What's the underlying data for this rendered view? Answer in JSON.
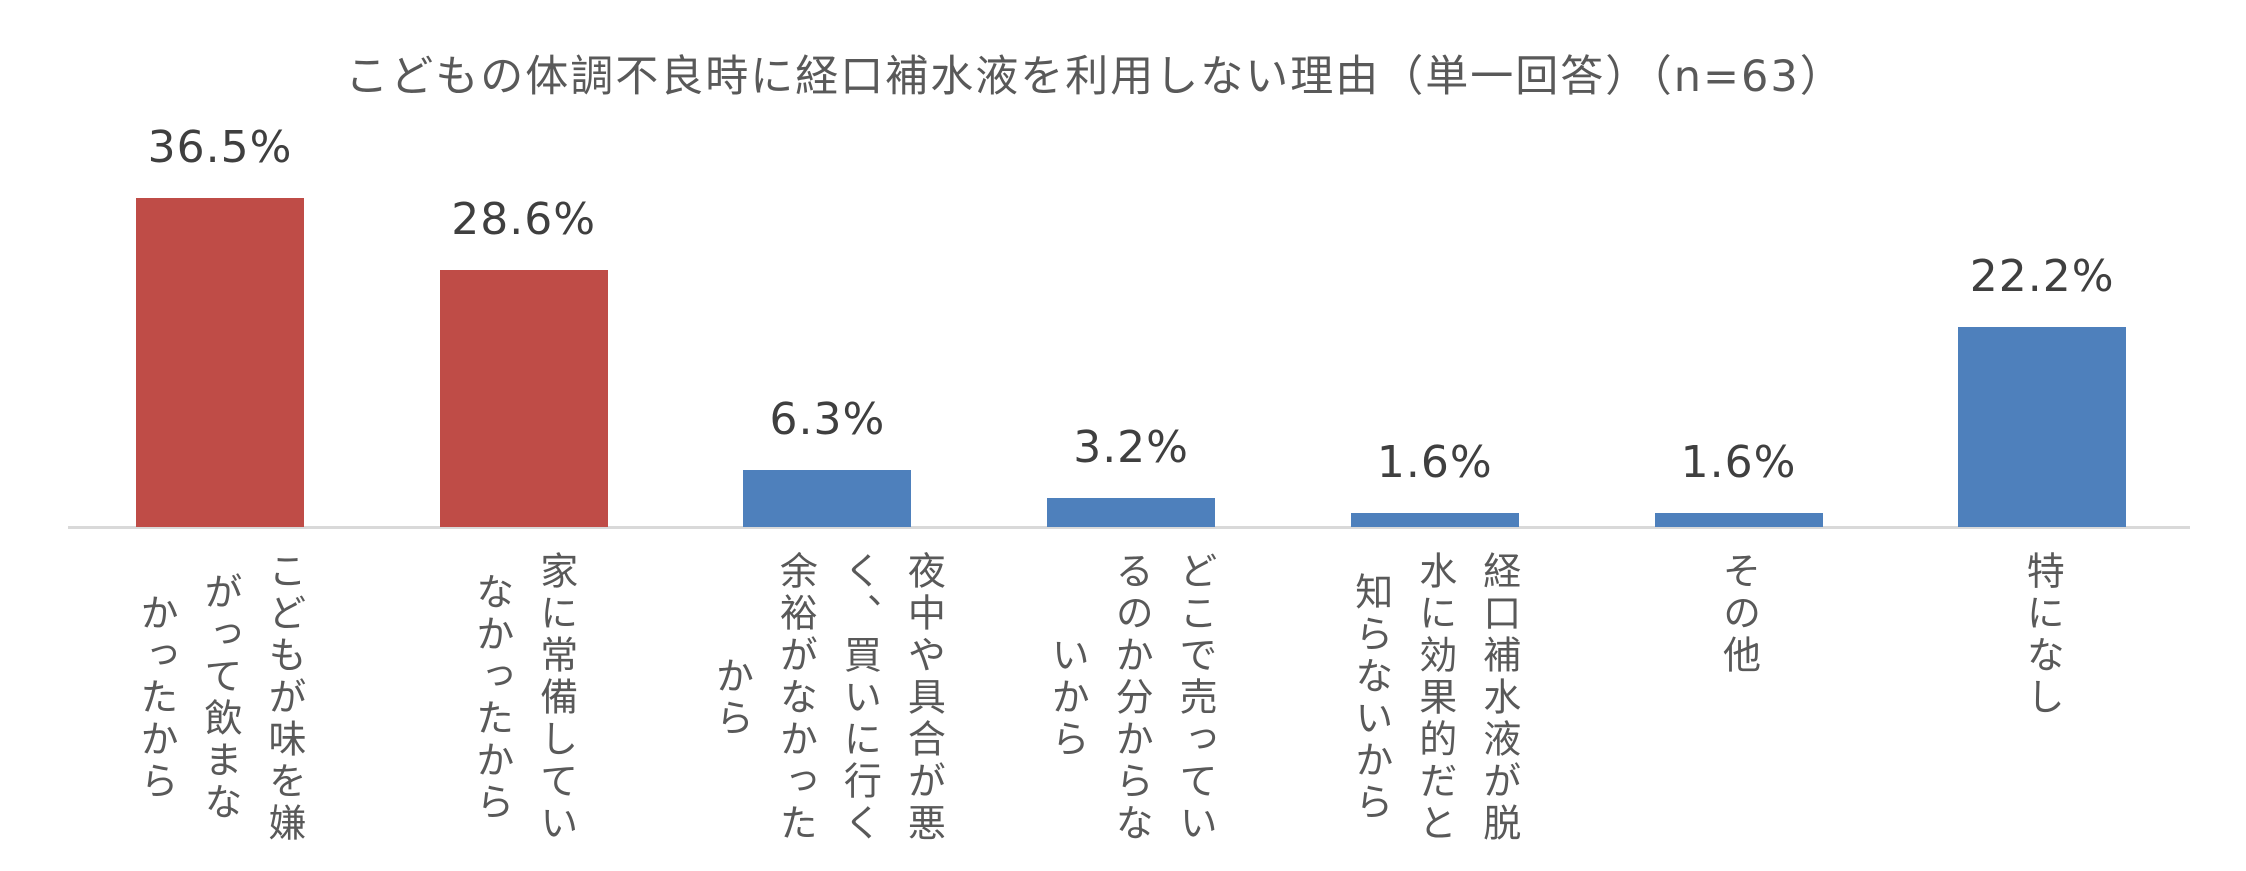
{
  "title": "こどもの体調不良時に経口補水液を利用しない理由（単一回答）（n=63）",
  "chart_data": {
    "type": "bar",
    "title": "こどもの体調不良時に経口補水液を利用しない理由（単一回答）",
    "sample_size_label": "n=63",
    "unit": "%",
    "categories": [
      "こどもが味を嫌がって飲まなかったから",
      "家に常備していなかったから",
      "夜中や具合が悪く、買いに行く余裕がなかったから",
      "どこで売っているのか分からないから",
      "経口補水液が脱水に効果的だと知らないから",
      "その他",
      "特になし"
    ],
    "values": [
      36.5,
      28.6,
      6.3,
      3.2,
      1.6,
      1.6,
      22.2
    ],
    "value_labels": [
      "36.5%",
      "28.6%",
      "6.3%",
      "3.2%",
      "1.6%",
      "1.6%",
      "22.2%"
    ],
    "bar_colors": [
      "#bf4c47",
      "#bf4c47",
      "#4e80bc",
      "#4e80bc",
      "#4e80bc",
      "#4e80bc",
      "#4e80bc"
    ],
    "category_label_lines": [
      [
        "こどもが味を嫌",
        "がって飲まな",
        "かったから"
      ],
      [
        "家に常備してい",
        "なかったから"
      ],
      [
        "夜中や具合が悪",
        "く、買いに行く",
        "余裕がなかった",
        "から"
      ],
      [
        "どこで売ってい",
        "るのか分からな",
        "いから"
      ],
      [
        "経口補水液が脱",
        "水に効果的だと",
        "知らないから"
      ],
      [
        "その他"
      ],
      [
        "特になし"
      ]
    ],
    "ylim": [
      0,
      40
    ],
    "grid": false,
    "legend": "none",
    "axis_line_color": "#d9d9d9",
    "text_colors": {
      "title": "#595959",
      "value_labels": "#3f3f3f",
      "category_labels": "#595959"
    }
  }
}
